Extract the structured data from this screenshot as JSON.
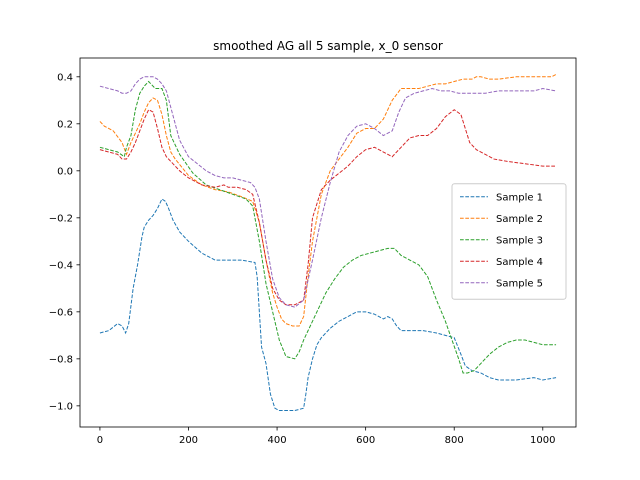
{
  "chart_data": {
    "type": "line",
    "title": "smoothed AG all 5 sample, x_0 sensor",
    "xlabel": "",
    "ylabel": "",
    "xlim": [
      -45,
      1075
    ],
    "ylim": [
      -1.09,
      0.48
    ],
    "xticks": [
      0,
      200,
      400,
      600,
      800,
      1000
    ],
    "yticks": [
      -1.0,
      -0.8,
      -0.6,
      -0.4,
      -0.2,
      0.0,
      0.2,
      0.4
    ],
    "xtick_labels": [
      "0",
      "200",
      "400",
      "600",
      "800",
      "1000"
    ],
    "ytick_labels": [
      "−1.0",
      "−0.8",
      "−0.6",
      "−0.4",
      "−0.2",
      "0.0",
      "0.2",
      "0.4"
    ],
    "grid": false,
    "legend_position": "center-right",
    "line_style": "dashed",
    "series": [
      {
        "name": "Sample 1",
        "color": "#1f77b4",
        "x": [
          0,
          20,
          40,
          50,
          58,
          65,
          75,
          85,
          95,
          100,
          110,
          120,
          130,
          140,
          148,
          155,
          165,
          180,
          200,
          230,
          260,
          290,
          320,
          350,
          355,
          360,
          365,
          375,
          385,
          395,
          405,
          420,
          440,
          460,
          465,
          470,
          480,
          490,
          500,
          520,
          540,
          560,
          580,
          600,
          620,
          640,
          650,
          660,
          670,
          680,
          700,
          730,
          760,
          780,
          800,
          815,
          825,
          840,
          860,
          880,
          900,
          940,
          980,
          1000,
          1030
        ],
        "y": [
          -0.69,
          -0.68,
          -0.65,
          -0.66,
          -0.69,
          -0.65,
          -0.5,
          -0.4,
          -0.28,
          -0.24,
          -0.21,
          -0.19,
          -0.16,
          -0.12,
          -0.13,
          -0.16,
          -0.21,
          -0.26,
          -0.3,
          -0.35,
          -0.38,
          -0.38,
          -0.38,
          -0.39,
          -0.45,
          -0.6,
          -0.75,
          -0.82,
          -0.95,
          -1.01,
          -1.02,
          -1.02,
          -1.02,
          -1.01,
          -0.95,
          -0.88,
          -0.8,
          -0.74,
          -0.71,
          -0.67,
          -0.64,
          -0.62,
          -0.6,
          -0.6,
          -0.61,
          -0.63,
          -0.62,
          -0.63,
          -0.66,
          -0.68,
          -0.68,
          -0.68,
          -0.69,
          -0.7,
          -0.71,
          -0.78,
          -0.83,
          -0.85,
          -0.86,
          -0.88,
          -0.89,
          -0.89,
          -0.88,
          -0.89,
          -0.88
        ]
      },
      {
        "name": "Sample 2",
        "color": "#ff7f0e",
        "x": [
          0,
          10,
          30,
          50,
          60,
          70,
          90,
          100,
          110,
          120,
          130,
          140,
          150,
          160,
          170,
          200,
          230,
          260,
          290,
          320,
          345,
          360,
          375,
          390,
          400,
          410,
          420,
          435,
          450,
          460,
          470,
          480,
          500,
          520,
          540,
          560,
          580,
          600,
          620,
          640,
          660,
          680,
          700,
          720,
          740,
          760,
          780,
          800,
          820,
          840,
          850,
          860,
          880,
          900,
          940,
          980,
          1000,
          1020,
          1030
        ],
        "y": [
          0.21,
          0.19,
          0.17,
          0.12,
          0.07,
          0.12,
          0.2,
          0.25,
          0.29,
          0.31,
          0.3,
          0.24,
          0.15,
          0.08,
          0.05,
          -0.02,
          -0.06,
          -0.08,
          -0.09,
          -0.11,
          -0.13,
          -0.22,
          -0.38,
          -0.52,
          -0.58,
          -0.63,
          -0.65,
          -0.66,
          -0.66,
          -0.62,
          -0.45,
          -0.3,
          -0.1,
          0.0,
          0.05,
          0.1,
          0.16,
          0.18,
          0.18,
          0.22,
          0.3,
          0.35,
          0.35,
          0.35,
          0.36,
          0.37,
          0.37,
          0.38,
          0.39,
          0.39,
          0.4,
          0.4,
          0.39,
          0.39,
          0.4,
          0.4,
          0.4,
          0.4,
          0.41
        ]
      },
      {
        "name": "Sample 3",
        "color": "#2ca02c",
        "x": [
          0,
          20,
          40,
          55,
          60,
          70,
          80,
          90,
          100,
          110,
          115,
          125,
          140,
          150,
          160,
          180,
          210,
          240,
          270,
          300,
          330,
          345,
          360,
          375,
          390,
          405,
          420,
          440,
          450,
          460,
          470,
          490,
          510,
          530,
          550,
          570,
          590,
          610,
          630,
          650,
          665,
          680,
          700,
          720,
          740,
          760,
          780,
          795,
          810,
          820,
          830,
          845,
          860,
          880,
          900,
          920,
          940,
          960,
          980,
          1000,
          1030
        ],
        "y": [
          0.1,
          0.09,
          0.08,
          0.06,
          0.1,
          0.15,
          0.26,
          0.33,
          0.36,
          0.38,
          0.37,
          0.35,
          0.35,
          0.3,
          0.15,
          0.07,
          -0.01,
          -0.06,
          -0.08,
          -0.1,
          -0.12,
          -0.15,
          -0.3,
          -0.48,
          -0.6,
          -0.72,
          -0.79,
          -0.8,
          -0.77,
          -0.72,
          -0.68,
          -0.6,
          -0.52,
          -0.46,
          -0.41,
          -0.38,
          -0.36,
          -0.35,
          -0.34,
          -0.33,
          -0.33,
          -0.36,
          -0.38,
          -0.4,
          -0.45,
          -0.55,
          -0.64,
          -0.72,
          -0.8,
          -0.86,
          -0.86,
          -0.85,
          -0.82,
          -0.78,
          -0.75,
          -0.73,
          -0.72,
          -0.72,
          -0.73,
          -0.74,
          -0.74
        ]
      },
      {
        "name": "Sample 4",
        "color": "#d62728",
        "x": [
          0,
          20,
          40,
          50,
          60,
          70,
          80,
          90,
          100,
          110,
          120,
          130,
          140,
          150,
          160,
          180,
          200,
          230,
          260,
          280,
          290,
          310,
          330,
          345,
          360,
          375,
          390,
          405,
          420,
          440,
          460,
          470,
          480,
          500,
          520,
          540,
          560,
          580,
          600,
          620,
          640,
          660,
          680,
          700,
          720,
          740,
          760,
          780,
          800,
          815,
          825,
          835,
          850,
          870,
          890,
          920,
          960,
          1000,
          1030
        ],
        "y": [
          0.09,
          0.08,
          0.07,
          0.05,
          0.05,
          0.08,
          0.12,
          0.17,
          0.22,
          0.26,
          0.25,
          0.18,
          0.1,
          0.06,
          0.04,
          0.0,
          -0.03,
          -0.06,
          -0.07,
          -0.06,
          -0.07,
          -0.07,
          -0.08,
          -0.1,
          -0.22,
          -0.38,
          -0.5,
          -0.55,
          -0.57,
          -0.57,
          -0.55,
          -0.4,
          -0.2,
          -0.08,
          -0.04,
          -0.01,
          0.02,
          0.06,
          0.09,
          0.1,
          0.08,
          0.06,
          0.1,
          0.14,
          0.15,
          0.15,
          0.18,
          0.23,
          0.26,
          0.24,
          0.18,
          0.12,
          0.09,
          0.07,
          0.05,
          0.04,
          0.03,
          0.02,
          0.02
        ]
      },
      {
        "name": "Sample 5",
        "color": "#9467bd",
        "x": [
          0,
          20,
          40,
          50,
          60,
          70,
          80,
          90,
          100,
          110,
          120,
          130,
          140,
          150,
          160,
          170,
          180,
          200,
          220,
          240,
          260,
          280,
          300,
          320,
          340,
          350,
          360,
          375,
          390,
          405,
          420,
          440,
          460,
          480,
          500,
          520,
          540,
          560,
          580,
          600,
          620,
          640,
          660,
          675,
          690,
          710,
          730,
          750,
          770,
          790,
          810,
          830,
          850,
          870,
          900,
          940,
          980,
          1000,
          1030
        ],
        "y": [
          0.36,
          0.35,
          0.34,
          0.33,
          0.33,
          0.34,
          0.37,
          0.39,
          0.4,
          0.4,
          0.4,
          0.39,
          0.37,
          0.34,
          0.27,
          0.2,
          0.13,
          0.06,
          0.03,
          0.0,
          -0.02,
          -0.03,
          -0.03,
          -0.04,
          -0.05,
          -0.07,
          -0.12,
          -0.3,
          -0.46,
          -0.54,
          -0.57,
          -0.58,
          -0.55,
          -0.38,
          -0.2,
          -0.05,
          0.08,
          0.15,
          0.19,
          0.2,
          0.18,
          0.15,
          0.17,
          0.25,
          0.31,
          0.33,
          0.34,
          0.35,
          0.34,
          0.34,
          0.33,
          0.33,
          0.33,
          0.33,
          0.34,
          0.34,
          0.34,
          0.35,
          0.34
        ]
      }
    ]
  }
}
